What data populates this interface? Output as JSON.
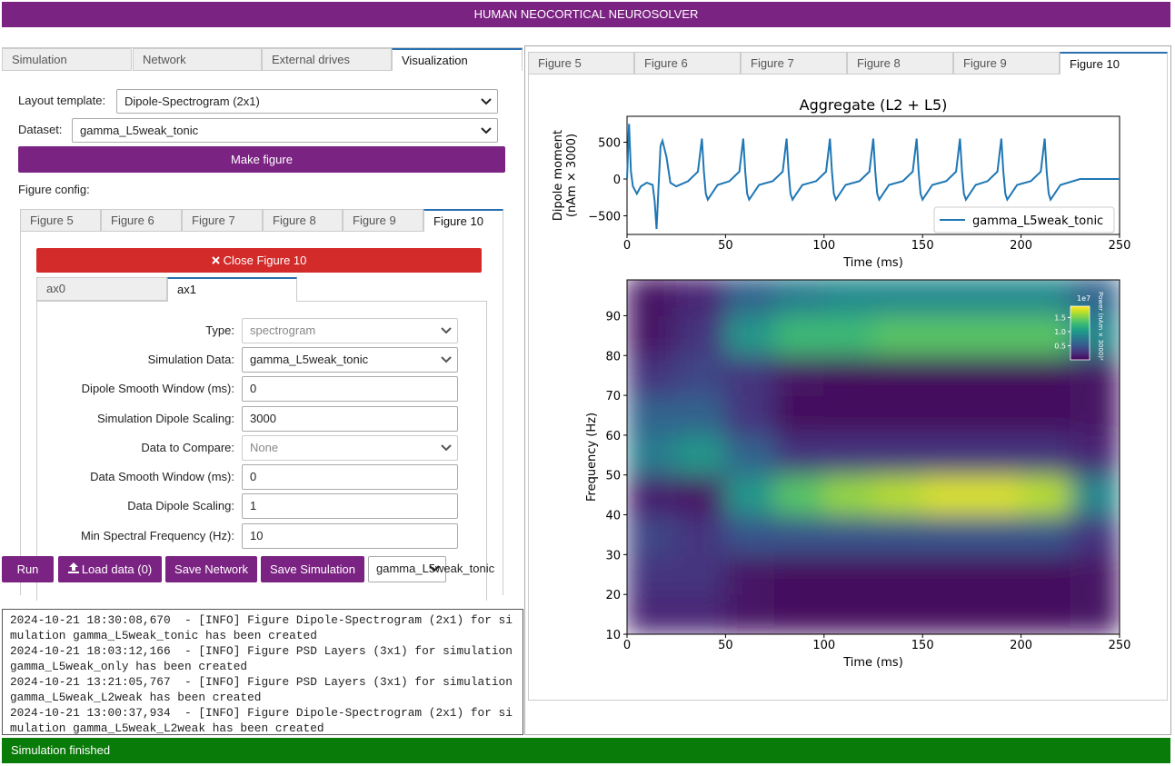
{
  "header": {
    "title": "HUMAN NEOCORTICAL NEUROSOLVER"
  },
  "left_tabs": [
    "Simulation",
    "Network",
    "External drives",
    "Visualization"
  ],
  "layout_template": {
    "label": "Layout template:",
    "value": "Dipole-Spectrogram (2x1)"
  },
  "dataset": {
    "label": "Dataset:",
    "value": "gamma_L5weak_tonic"
  },
  "make_figure": "Make figure",
  "figure_config": "Figure config:",
  "figure_tabs": [
    "Figure 5",
    "Figure 6",
    "Figure 7",
    "Figure 8",
    "Figure 9",
    "Figure 10"
  ],
  "close_figure": "Close Figure 10",
  "ax_tabs": [
    "ax0",
    "ax1"
  ],
  "form": [
    {
      "label": "Type:",
      "value": "spectrogram"
    },
    {
      "label": "Simulation Data:",
      "value": "gamma_L5weak_tonic"
    },
    {
      "label": "Dipole Smooth Window (ms):",
      "value": "0"
    },
    {
      "label": "Simulation Dipole Scaling:",
      "value": "3000"
    },
    {
      "label": "Data to Compare:",
      "value": "None"
    },
    {
      "label": "Data Smooth Window (ms):",
      "value": "0"
    },
    {
      "label": "Data Dipole Scaling:",
      "value": "1"
    },
    {
      "label": "Min Spectral Frequency (Hz):",
      "value": "10"
    }
  ],
  "actions": [
    "Run",
    "Load data (0)",
    "Save Network",
    "Save Simulation"
  ],
  "simulation_select": "gamma_L5weak_tonic",
  "log": [
    "2024-10-21 18:30:08,670  - [INFO] Figure Dipole-Spectrogram (2x1) for simulation gamma_L5weak_tonic has been created",
    "2024-10-21 18:03:12,166  - [INFO] Figure PSD Layers (3x1) for simulation gamma_L5weak_only has been created",
    "2024-10-21 13:21:05,767  - [INFO] Figure PSD Layers (3x1) for simulation gamma_L5weak_L2weak has been created",
    "2024-10-21 13:00:37,934  - [INFO] Figure Dipole-Spectrogram (2x1) for simulation gamma_L5weak_L2weak has been created"
  ],
  "viewer_tabs": [
    "Figure 5",
    "Figure 6",
    "Figure 7",
    "Figure 8",
    "Figure 9",
    "Figure 10"
  ],
  "figure": {
    "dipole": {
      "type": "line",
      "title": "Aggregate (L2 + L5)",
      "xlabel": "Time (ms)",
      "ylabel": [
        "Dipole moment",
        "(nAm × 3000)"
      ],
      "xlim": [
        0,
        250
      ],
      "ylim": [
        -753,
        852
      ],
      "xticks": [
        0,
        50,
        100,
        150,
        200,
        250
      ],
      "yticks": [
        {
          "value": -500,
          "label": "−500"
        },
        0,
        500
      ],
      "series": [
        {
          "name": "gamma_L5weak_tonic",
          "color": "#1f77b4",
          "x": [
            0,
            1,
            2,
            3,
            5,
            7,
            10,
            13,
            14,
            15,
            16,
            17,
            18,
            20,
            22,
            25,
            31,
            36,
            38,
            39,
            40,
            41,
            43,
            46,
            52,
            57,
            59,
            60,
            61,
            62,
            64,
            67,
            74,
            79,
            81,
            82,
            83,
            84,
            86,
            89,
            96,
            101,
            103,
            104,
            105,
            106,
            108,
            111,
            118,
            123,
            125,
            126,
            127,
            128,
            130,
            133,
            140,
            145,
            147,
            148,
            149,
            150,
            152,
            155,
            162,
            167,
            169,
            170,
            171,
            172,
            174,
            177,
            183,
            188,
            190,
            191,
            192,
            193,
            195,
            198,
            205,
            210,
            212,
            213,
            214,
            215,
            217,
            220,
            230,
            250
          ],
          "values": [
            0,
            750,
            100,
            -100,
            -200,
            -100,
            -50,
            -80,
            -300,
            -680,
            -100,
            450,
            520,
            300,
            -50,
            -100,
            -30,
            100,
            550,
            100,
            -200,
            -280,
            -200,
            -80,
            -30,
            100,
            550,
            100,
            -200,
            -280,
            -200,
            -80,
            -30,
            100,
            550,
            100,
            -200,
            -280,
            -200,
            -80,
            -30,
            100,
            550,
            100,
            -200,
            -280,
            -200,
            -80,
            -30,
            100,
            550,
            100,
            -200,
            -280,
            -200,
            -80,
            -30,
            100,
            550,
            100,
            -200,
            -280,
            -200,
            -80,
            -30,
            100,
            550,
            100,
            -200,
            -280,
            -200,
            -80,
            -30,
            100,
            550,
            100,
            -200,
            -280,
            -200,
            -80,
            -30,
            100,
            550,
            100,
            -200,
            -280,
            -200,
            -80,
            0,
            0
          ]
        }
      ]
    },
    "spectrogram": {
      "type": "heatmap",
      "xlabel": "Time (ms)",
      "ylabel": "Frequency (Hz)",
      "xlim": [
        0,
        250
      ],
      "ylim": [
        10,
        99
      ],
      "xticks": [
        0,
        50,
        100,
        150,
        200,
        250
      ],
      "yticks": [
        10,
        20,
        30,
        40,
        50,
        60,
        70,
        80,
        90
      ],
      "x": [
        12.5,
        37.5,
        62.5,
        87.5,
        112.5,
        137.5,
        162.5,
        187.5,
        212.5,
        237.5
      ],
      "y": [
        15,
        25,
        35,
        45,
        55,
        65,
        75,
        85,
        95
      ],
      "power": [
        [
          0.2,
          0.2,
          0.1,
          0.05,
          0.05,
          0.05,
          0.05,
          0.05,
          0.05,
          0.1
        ],
        [
          0.3,
          0.3,
          0.1,
          0.05,
          0.05,
          0.05,
          0.05,
          0.05,
          0.05,
          0.1
        ],
        [
          0.4,
          0.3,
          0.5,
          0.5,
          0.5,
          0.5,
          0.5,
          0.5,
          0.5,
          0.3
        ],
        [
          0.15,
          0.1,
          1.0,
          1.4,
          1.6,
          1.7,
          1.8,
          1.8,
          1.7,
          0.9
        ],
        [
          0.8,
          1.0,
          0.6,
          0.3,
          0.3,
          0.3,
          0.3,
          0.3,
          0.3,
          0.2
        ],
        [
          0.6,
          0.6,
          0.3,
          0.05,
          0.05,
          0.05,
          0.05,
          0.05,
          0.05,
          0.1
        ],
        [
          0.3,
          0.4,
          0.3,
          0.1,
          0.05,
          0.05,
          0.05,
          0.05,
          0.05,
          0.1
        ],
        [
          0.1,
          0.3,
          1.0,
          1.3,
          1.3,
          1.4,
          1.4,
          1.4,
          1.4,
          0.9
        ],
        [
          0.1,
          0.2,
          0.6,
          0.8,
          0.9,
          0.9,
          0.9,
          0.9,
          0.9,
          0.6
        ]
      ],
      "colorbar": {
        "label": "Power (nAm × 3000)²",
        "scale_label": "1e7",
        "clim": [
          0,
          1.9
        ],
        "ticks": [
          0.5,
          {
            "value": 1,
            "label": "1.0"
          },
          1.5
        ]
      }
    }
  },
  "status": "Simulation finished"
}
